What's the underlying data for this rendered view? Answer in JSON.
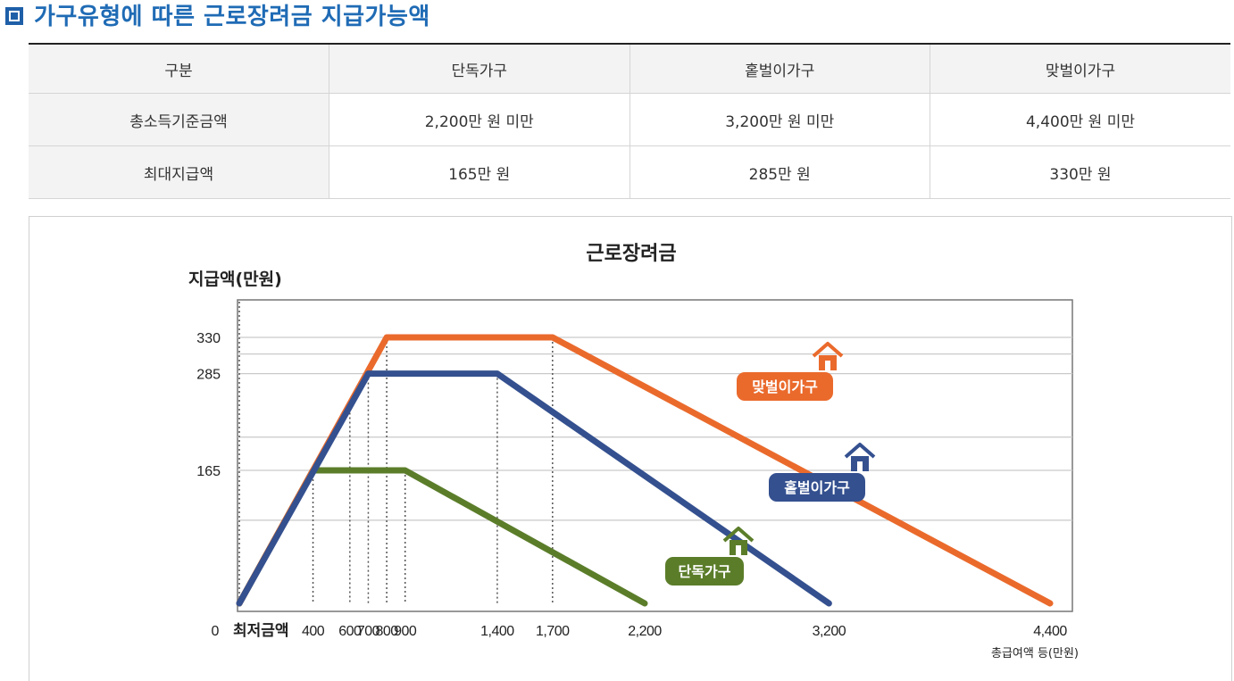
{
  "page_title": "가구유형에 따른 근로장려금 지급가능액",
  "table": {
    "headers": [
      "구분",
      "단독가구",
      "홑벌이가구",
      "맞벌이가구"
    ],
    "rows": [
      {
        "label": "총소득기준금액",
        "values": [
          "2,200만 원 미만",
          "3,200만 원 미만",
          "4,400만 원 미만"
        ]
      },
      {
        "label": "최대지급액",
        "values": [
          "165만 원",
          "285만 원",
          "330만 원"
        ]
      }
    ]
  },
  "chart_data": {
    "type": "line",
    "title": "근로장려금",
    "ylabel": "지급액(만원)",
    "xlabel": "총급여액 등(만원)",
    "x_start_label": "최저금액",
    "y_zero_label": "0",
    "xlim": [
      0,
      4400
    ],
    "ylim": [
      0,
      330
    ],
    "x_ticks": [
      {
        "value": 400,
        "label": "400"
      },
      {
        "value": 600,
        "label": "600"
      },
      {
        "value": 700,
        "label": "700"
      },
      {
        "value": 800,
        "label": "800"
      },
      {
        "value": 900,
        "label": "900"
      },
      {
        "value": 1400,
        "label": "1,400"
      },
      {
        "value": 1700,
        "label": "1,700"
      },
      {
        "value": 2200,
        "label": "2,200"
      },
      {
        "value": 3200,
        "label": "3,200"
      },
      {
        "value": 4400,
        "label": "4,400"
      }
    ],
    "y_ticks": [
      {
        "value": 165,
        "label": "165"
      },
      {
        "value": 285,
        "label": "285"
      },
      {
        "value": 330,
        "label": "330"
      }
    ],
    "series": [
      {
        "name": "단독가구",
        "color": "#5b7d2a",
        "points": [
          [
            0,
            0
          ],
          [
            400,
            165
          ],
          [
            900,
            165
          ],
          [
            2200,
            0
          ]
        ]
      },
      {
        "name": "홑벌이가구",
        "color": "#34508f",
        "points": [
          [
            0,
            0
          ],
          [
            700,
            285
          ],
          [
            1400,
            285
          ],
          [
            3200,
            0
          ]
        ]
      },
      {
        "name": "맞벌이가구",
        "color": "#ea6a2c",
        "points": [
          [
            0,
            0
          ],
          [
            800,
            330
          ],
          [
            1700,
            330
          ],
          [
            4400,
            0
          ]
        ]
      }
    ],
    "legend_placement": "inline labels near lines",
    "grid": true
  }
}
